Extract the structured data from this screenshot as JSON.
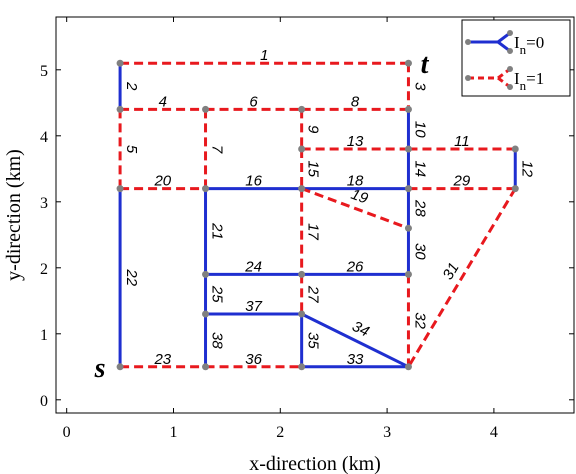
{
  "chart_data": {
    "type": "scatter",
    "xlabel": "x-direction (km)",
    "ylabel": "y-direction (km)",
    "xlim": [
      -0.1,
      4.75
    ],
    "ylim": [
      -0.2,
      5.8
    ],
    "xticks": [
      0,
      1,
      2,
      3,
      4
    ],
    "yticks": [
      0,
      1,
      2,
      3,
      4,
      5
    ],
    "grid": false,
    "legend_position": "top-right",
    "colors": {
      "closed": "#1f2fd0",
      "open": "#e8191e",
      "node": "#808080"
    },
    "legend": [
      {
        "status": "closed",
        "label": "I",
        "sub": "n",
        "value": "=0"
      },
      {
        "status": "open",
        "label": "I",
        "sub": "n",
        "value": "=1"
      }
    ],
    "special_nodes": [
      {
        "label": "s",
        "x": 0.5,
        "y": 0.5
      },
      {
        "label": "t",
        "x": 3.2,
        "y": 5.1
      }
    ],
    "nodes": [
      [
        0.5,
        5.1
      ],
      [
        3.2,
        5.1
      ],
      [
        0.5,
        4.4
      ],
      [
        1.3,
        4.4
      ],
      [
        2.2,
        4.4
      ],
      [
        3.2,
        4.4
      ],
      [
        2.2,
        3.8
      ],
      [
        3.2,
        3.8
      ],
      [
        4.2,
        3.8
      ],
      [
        0.5,
        3.2
      ],
      [
        1.3,
        3.2
      ],
      [
        2.2,
        3.2
      ],
      [
        3.2,
        3.2
      ],
      [
        4.2,
        3.2
      ],
      [
        3.2,
        2.6
      ],
      [
        1.3,
        1.9
      ],
      [
        2.2,
        1.9
      ],
      [
        3.2,
        1.9
      ],
      [
        1.3,
        1.3
      ],
      [
        2.2,
        1.3
      ],
      [
        0.5,
        0.5
      ],
      [
        1.3,
        0.5
      ],
      [
        2.2,
        0.5
      ],
      [
        3.2,
        0.5
      ]
    ],
    "edges": [
      {
        "id": "1",
        "from": [
          0.5,
          5.1
        ],
        "to": [
          3.2,
          5.1
        ],
        "status": "open"
      },
      {
        "id": "2",
        "from": [
          0.5,
          5.1
        ],
        "to": [
          0.5,
          4.4
        ],
        "status": "closed"
      },
      {
        "id": "3",
        "from": [
          3.2,
          5.1
        ],
        "to": [
          3.2,
          4.4
        ],
        "status": "open"
      },
      {
        "id": "4",
        "from": [
          0.5,
          4.4
        ],
        "to": [
          1.3,
          4.4
        ],
        "status": "open"
      },
      {
        "id": "5",
        "from": [
          0.5,
          4.4
        ],
        "to": [
          0.5,
          3.2
        ],
        "status": "open"
      },
      {
        "id": "6",
        "from": [
          1.3,
          4.4
        ],
        "to": [
          2.2,
          4.4
        ],
        "status": "open"
      },
      {
        "id": "7",
        "from": [
          1.3,
          4.4
        ],
        "to": [
          1.3,
          3.2
        ],
        "status": "open"
      },
      {
        "id": "8",
        "from": [
          2.2,
          4.4
        ],
        "to": [
          3.2,
          4.4
        ],
        "status": "open"
      },
      {
        "id": "9",
        "from": [
          2.2,
          4.4
        ],
        "to": [
          2.2,
          3.8
        ],
        "status": "open"
      },
      {
        "id": "10",
        "from": [
          3.2,
          4.4
        ],
        "to": [
          3.2,
          3.8
        ],
        "status": "closed"
      },
      {
        "id": "11",
        "from": [
          3.2,
          3.8
        ],
        "to": [
          4.2,
          3.8
        ],
        "status": "open"
      },
      {
        "id": "12",
        "from": [
          4.2,
          3.8
        ],
        "to": [
          4.2,
          3.2
        ],
        "status": "closed"
      },
      {
        "id": "13",
        "from": [
          2.2,
          3.8
        ],
        "to": [
          3.2,
          3.8
        ],
        "status": "open"
      },
      {
        "id": "14",
        "from": [
          3.2,
          3.8
        ],
        "to": [
          3.2,
          3.2
        ],
        "status": "closed"
      },
      {
        "id": "15",
        "from": [
          2.2,
          3.8
        ],
        "to": [
          2.2,
          3.2
        ],
        "status": "open"
      },
      {
        "id": "16",
        "from": [
          1.3,
          3.2
        ],
        "to": [
          2.2,
          3.2
        ],
        "status": "closed"
      },
      {
        "id": "17",
        "from": [
          2.2,
          3.2
        ],
        "to": [
          2.2,
          1.9
        ],
        "status": "open"
      },
      {
        "id": "18",
        "from": [
          2.2,
          3.2
        ],
        "to": [
          3.2,
          3.2
        ],
        "status": "closed"
      },
      {
        "id": "19",
        "from": [
          2.2,
          3.2
        ],
        "to": [
          3.2,
          2.6
        ],
        "status": "open"
      },
      {
        "id": "20",
        "from": [
          0.5,
          3.2
        ],
        "to": [
          1.3,
          3.2
        ],
        "status": "open"
      },
      {
        "id": "21",
        "from": [
          1.3,
          3.2
        ],
        "to": [
          1.3,
          1.9
        ],
        "status": "closed"
      },
      {
        "id": "22",
        "from": [
          0.5,
          3.2
        ],
        "to": [
          0.5,
          0.5
        ],
        "status": "closed"
      },
      {
        "id": "23",
        "from": [
          0.5,
          0.5
        ],
        "to": [
          1.3,
          0.5
        ],
        "status": "open"
      },
      {
        "id": "24",
        "from": [
          1.3,
          1.9
        ],
        "to": [
          2.2,
          1.9
        ],
        "status": "closed"
      },
      {
        "id": "25",
        "from": [
          1.3,
          1.9
        ],
        "to": [
          1.3,
          1.3
        ],
        "status": "closed"
      },
      {
        "id": "26",
        "from": [
          2.2,
          1.9
        ],
        "to": [
          3.2,
          1.9
        ],
        "status": "closed"
      },
      {
        "id": "27",
        "from": [
          2.2,
          1.9
        ],
        "to": [
          2.2,
          1.3
        ],
        "status": "open"
      },
      {
        "id": "28",
        "from": [
          3.2,
          3.2
        ],
        "to": [
          3.2,
          2.6
        ],
        "status": "closed"
      },
      {
        "id": "29",
        "from": [
          3.2,
          3.2
        ],
        "to": [
          4.2,
          3.2
        ],
        "status": "open"
      },
      {
        "id": "30",
        "from": [
          3.2,
          2.6
        ],
        "to": [
          3.2,
          1.9
        ],
        "status": "closed"
      },
      {
        "id": "31",
        "from": [
          4.2,
          3.2
        ],
        "to": [
          3.2,
          0.5
        ],
        "status": "open"
      },
      {
        "id": "32",
        "from": [
          3.2,
          1.9
        ],
        "to": [
          3.2,
          0.5
        ],
        "status": "open"
      },
      {
        "id": "33",
        "from": [
          2.2,
          0.5
        ],
        "to": [
          3.2,
          0.5
        ],
        "status": "closed"
      },
      {
        "id": "34",
        "from": [
          2.2,
          1.3
        ],
        "to": [
          3.2,
          0.5
        ],
        "status": "closed"
      },
      {
        "id": "35",
        "from": [
          2.2,
          1.3
        ],
        "to": [
          2.2,
          0.5
        ],
        "status": "closed"
      },
      {
        "id": "36",
        "from": [
          1.3,
          0.5
        ],
        "to": [
          2.2,
          0.5
        ],
        "status": "open"
      },
      {
        "id": "37",
        "from": [
          1.3,
          1.3
        ],
        "to": [
          2.2,
          1.3
        ],
        "status": "closed"
      },
      {
        "id": "38",
        "from": [
          1.3,
          1.3
        ],
        "to": [
          1.3,
          0.5
        ],
        "status": "closed"
      }
    ]
  }
}
